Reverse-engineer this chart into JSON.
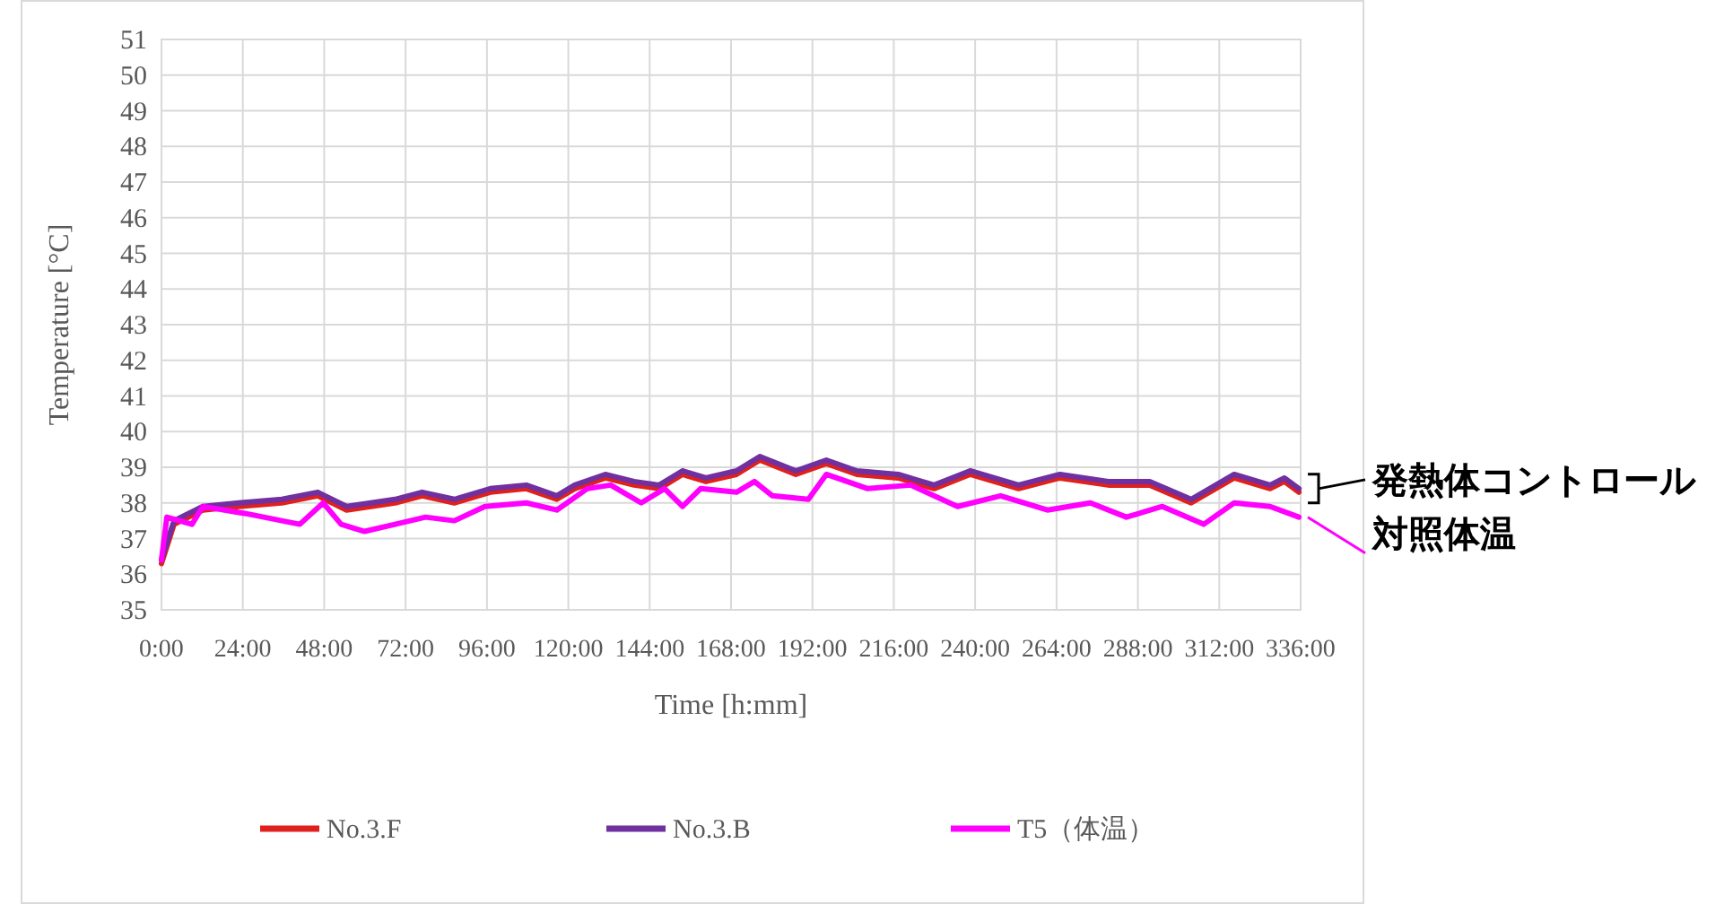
{
  "chart_data": {
    "type": "line",
    "xlabel": "Time [h:mm]",
    "ylabel": "Temperature [°C]",
    "xlim": [
      0,
      336
    ],
    "xticks": [
      {
        "value": 0,
        "label": "0:00"
      },
      {
        "value": 24,
        "label": "24:00"
      },
      {
        "value": 48,
        "label": "48:00"
      },
      {
        "value": 72,
        "label": "72:00"
      },
      {
        "value": 96,
        "label": "96:00"
      },
      {
        "value": 120,
        "label": "120:00"
      },
      {
        "value": 144,
        "label": "144:00"
      },
      {
        "value": 168,
        "label": "168:00"
      },
      {
        "value": 192,
        "label": "192:00"
      },
      {
        "value": 216,
        "label": "216:00"
      },
      {
        "value": 240,
        "label": "240:00"
      },
      {
        "value": 264,
        "label": "264:00"
      },
      {
        "value": 288,
        "label": "288:00"
      },
      {
        "value": 312,
        "label": "312:00"
      },
      {
        "value": 336,
        "label": "336:00"
      }
    ],
    "ylim": [
      35,
      51
    ],
    "yticks": [
      35,
      36,
      37,
      38,
      39,
      40,
      41,
      42,
      43,
      44,
      45,
      46,
      47,
      48,
      49,
      50,
      51
    ],
    "grid": true,
    "legend": "bottom",
    "marker": "none",
    "line_style": "solid",
    "series": [
      {
        "name": "No.3.F",
        "color": "#e0201c",
        "x": [
          0,
          3.7,
          12.2,
          22.8,
          35.5,
          46.1,
          54.6,
          68.9,
          76.9,
          86.4,
          97.0,
          107.6,
          116.6,
          121.9,
          130.9,
          139.4,
          146.8,
          153.7,
          160.6,
          169.6,
          176.5,
          187.1,
          196.1,
          205.1,
          217.3,
          227.9,
          238.5,
          252.8,
          265.0,
          279.3,
          291.5,
          303.7,
          316.4,
          327.0,
          331.2,
          335.5
        ],
        "values": [
          36.3,
          37.4,
          37.8,
          37.9,
          38.0,
          38.2,
          37.8,
          38.0,
          38.2,
          38.0,
          38.3,
          38.4,
          38.1,
          38.4,
          38.7,
          38.5,
          38.4,
          38.8,
          38.6,
          38.8,
          39.2,
          38.8,
          39.1,
          38.8,
          38.7,
          38.4,
          38.8,
          38.4,
          38.7,
          38.5,
          38.5,
          38.0,
          38.7,
          38.4,
          38.6,
          38.3
        ]
      },
      {
        "name": "No.3.B",
        "color": "#7030a0",
        "x": [
          0,
          3.7,
          12.2,
          22.8,
          35.5,
          46.1,
          54.6,
          68.9,
          76.9,
          86.4,
          97.0,
          107.6,
          116.6,
          121.9,
          130.9,
          139.4,
          146.8,
          153.7,
          160.6,
          169.6,
          176.5,
          187.1,
          196.1,
          205.1,
          217.3,
          227.9,
          238.5,
          252.8,
          265.0,
          279.3,
          291.5,
          303.7,
          316.4,
          327.0,
          331.2,
          335.5
        ],
        "values": [
          36.4,
          37.5,
          37.9,
          38.0,
          38.1,
          38.3,
          37.9,
          38.1,
          38.3,
          38.1,
          38.4,
          38.5,
          38.2,
          38.5,
          38.8,
          38.6,
          38.5,
          38.9,
          38.7,
          38.9,
          39.3,
          38.9,
          39.2,
          38.9,
          38.8,
          38.5,
          38.9,
          38.5,
          38.8,
          38.6,
          38.6,
          38.1,
          38.8,
          38.5,
          38.7,
          38.4
        ]
      },
      {
        "name": "T5（体温）",
        "color": "#ff00ff",
        "x": [
          0,
          1.6,
          9.0,
          12.2,
          24.9,
          40.8,
          47.7,
          53.0,
          59.9,
          68.9,
          77.9,
          86.4,
          95.4,
          107.6,
          116.6,
          125.6,
          132.5,
          141.5,
          148.4,
          153.7,
          159.0,
          169.6,
          174.9,
          180.2,
          190.8,
          196.1,
          208.3,
          221.0,
          234.8,
          247.5,
          261.3,
          274.0,
          284.6,
          295.2,
          307.4,
          316.4,
          327.0,
          335.5
        ],
        "values": [
          36.4,
          37.6,
          37.4,
          37.9,
          37.7,
          37.4,
          38.0,
          37.4,
          37.2,
          37.4,
          37.6,
          37.5,
          37.9,
          38.0,
          37.8,
          38.4,
          38.5,
          38.0,
          38.4,
          37.9,
          38.4,
          38.3,
          38.6,
          38.2,
          38.1,
          38.8,
          38.4,
          38.5,
          37.9,
          38.2,
          37.8,
          38.0,
          37.6,
          37.9,
          37.4,
          38.0,
          37.9,
          37.6
        ]
      }
    ],
    "annotations": [
      {
        "text": "発熱体コントロール",
        "x": 336,
        "y": 38.4
      },
      {
        "text": "対照体温",
        "x": 336,
        "y": 37.6
      }
    ]
  }
}
